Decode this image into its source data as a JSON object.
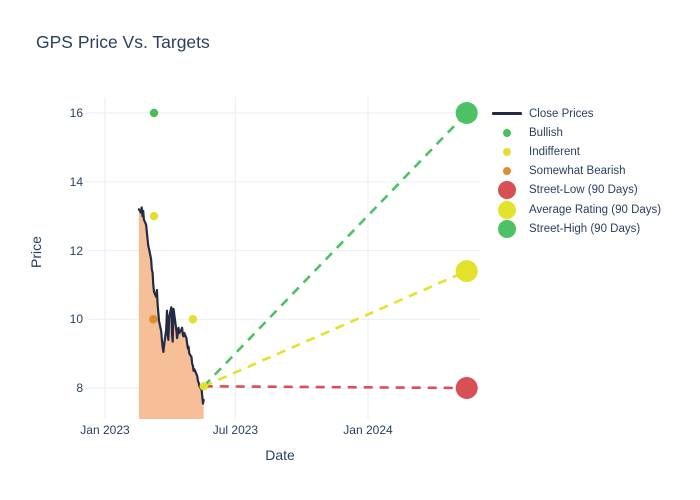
{
  "title": "GPS Price Vs. Targets",
  "colors": {
    "text": "#2a3f5f",
    "grid": "#ebf0f8",
    "close_line": "#232b45",
    "area_fill": "#f7bf97",
    "bullish": "#4cbb5a",
    "indifferent": "#e2df31",
    "somewhat_bearish": "#dd8f2e",
    "street_low": "#d84f55",
    "average_rating": "#e2e22c",
    "street_high": "#4cc264",
    "background": "#ffffff"
  },
  "legend": {
    "items": [
      {
        "label": "Close Prices",
        "symbol": "line",
        "color": "#232b45"
      },
      {
        "label": "Bullish",
        "symbol": "dot-small",
        "color": "#4cbb5a"
      },
      {
        "label": "Indifferent",
        "symbol": "dot-small",
        "color": "#e2df31"
      },
      {
        "label": "Somewhat Bearish",
        "symbol": "dot-small",
        "color": "#dd8f2e"
      },
      {
        "label": "Street-Low (90 Days)",
        "symbol": "dot-large",
        "color": "#d84f55"
      },
      {
        "label": "Average Rating (90 Days)",
        "symbol": "dot-large",
        "color": "#e2e22c"
      },
      {
        "label": "Street-High (90 Days)",
        "symbol": "dot-large",
        "color": "#4cc264"
      }
    ]
  },
  "chart_data": {
    "type": "line",
    "title": "GPS Price Vs. Targets",
    "xlabel": "Date",
    "ylabel": "Price",
    "grid": true,
    "legend_position": "right",
    "xticks": [
      {
        "label": "Jan 2023",
        "date": "2023-01-01"
      },
      {
        "label": "Jul 2023",
        "date": "2023-07-01"
      },
      {
        "label": "Jan 2024",
        "date": "2024-01-01"
      }
    ],
    "yticks": [
      8,
      10,
      12,
      14,
      16
    ],
    "xlim": [
      "2022-12-04",
      "2024-06-05"
    ],
    "ylim": [
      7.1,
      16.5
    ],
    "series": [
      {
        "name": "Close Prices",
        "type": "line",
        "fill": "tozeroy",
        "color_key": "close_line",
        "fill_color_key": "area_fill",
        "dates": [
          "2023-02-17",
          "2023-02-20",
          "2023-02-21",
          "2023-02-22",
          "2023-02-23",
          "2023-02-24",
          "2023-02-27",
          "2023-02-28",
          "2023-03-01",
          "2023-03-02",
          "2023-03-03",
          "2023-03-06",
          "2023-03-07",
          "2023-03-08",
          "2023-03-09",
          "2023-03-10",
          "2023-03-13",
          "2023-03-14",
          "2023-03-15",
          "2023-03-16",
          "2023-03-17",
          "2023-03-20",
          "2023-03-21",
          "2023-03-22",
          "2023-03-23",
          "2023-03-24",
          "2023-03-27",
          "2023-03-28",
          "2023-03-29",
          "2023-03-30",
          "2023-03-31",
          "2023-04-03",
          "2023-04-04",
          "2023-04-05",
          "2023-04-06",
          "2023-04-10",
          "2023-04-11",
          "2023-04-12",
          "2023-04-13",
          "2023-04-14",
          "2023-04-17",
          "2023-04-18",
          "2023-04-19",
          "2023-04-20",
          "2023-04-21",
          "2023-04-24",
          "2023-04-25",
          "2023-04-26",
          "2023-04-27",
          "2023-04-28",
          "2023-05-01",
          "2023-05-02",
          "2023-05-03",
          "2023-05-04",
          "2023-05-05",
          "2023-05-08",
          "2023-05-09",
          "2023-05-10",
          "2023-05-11",
          "2023-05-12",
          "2023-05-15",
          "2023-05-16",
          "2023-05-17",
          "2023-05-18"
        ],
        "values": [
          13.2,
          13.1,
          13.25,
          13.0,
          13.15,
          12.9,
          12.75,
          12.55,
          12.35,
          12.15,
          12.05,
          11.75,
          11.45,
          11.35,
          11.0,
          10.8,
          10.65,
          10.85,
          10.45,
          10.2,
          9.95,
          9.65,
          9.4,
          9.2,
          9.05,
          9.25,
          9.7,
          10.25,
          9.55,
          9.4,
          10.05,
          10.35,
          9.55,
          9.35,
          10.3,
          9.7,
          9.45,
          9.6,
          9.75,
          9.6,
          9.7,
          9.75,
          9.55,
          9.5,
          9.6,
          9.45,
          9.3,
          9.15,
          9.2,
          9.0,
          8.9,
          8.7,
          8.65,
          8.5,
          8.55,
          8.4,
          8.35,
          8.2,
          8.15,
          8.05,
          7.95,
          7.75,
          7.55,
          7.65
        ]
      },
      {
        "name": "Bullish",
        "type": "scatter",
        "color_key": "bullish",
        "marker_size": "small",
        "points": [
          {
            "date": "2023-03-10",
            "price": 16.0
          }
        ]
      },
      {
        "name": "Indifferent",
        "type": "scatter",
        "color_key": "indifferent",
        "marker_size": "small",
        "points": [
          {
            "date": "2023-03-10",
            "price": 13.0
          },
          {
            "date": "2023-05-03",
            "price": 10.0
          },
          {
            "date": "2023-05-18",
            "price": 8.05
          }
        ]
      },
      {
        "name": "Somewhat Bearish",
        "type": "scatter",
        "color_key": "somewhat_bearish",
        "marker_size": "small",
        "points": [
          {
            "date": "2023-03-09",
            "price": 10.0
          }
        ]
      },
      {
        "name": "Street-Low (90 Days)",
        "type": "dashed-line",
        "color_key": "street_low",
        "marker_size": "large",
        "points": [
          {
            "date": "2023-05-18",
            "price": 8.05
          },
          {
            "date": "2024-05-17",
            "price": 8.0
          }
        ]
      },
      {
        "name": "Average Rating (90 Days)",
        "type": "dashed-line",
        "color_key": "average_rating",
        "marker_size": "large",
        "points": [
          {
            "date": "2023-05-18",
            "price": 8.05
          },
          {
            "date": "2024-05-17",
            "price": 11.4
          }
        ]
      },
      {
        "name": "Street-High (90 Days)",
        "type": "dashed-line",
        "color_key": "street_high",
        "marker_size": "large",
        "points": [
          {
            "date": "2023-05-18",
            "price": 8.05
          },
          {
            "date": "2024-05-17",
            "price": 16.0
          }
        ]
      }
    ]
  }
}
